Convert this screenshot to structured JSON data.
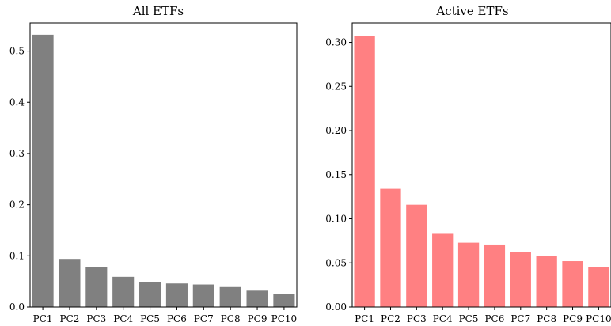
{
  "chart_data": [
    {
      "type": "bar",
      "title": "All ETFs",
      "xlabel": "",
      "ylabel": "",
      "categories": [
        "PC1",
        "PC2",
        "PC3",
        "PC4",
        "PC5",
        "PC6",
        "PC7",
        "PC8",
        "PC9",
        "PC10"
      ],
      "values": [
        0.532,
        0.094,
        0.078,
        0.059,
        0.049,
        0.046,
        0.044,
        0.039,
        0.032,
        0.026
      ],
      "ylim": [
        0,
        0.555
      ],
      "yticks": [
        0.0,
        0.1,
        0.2,
        0.3,
        0.4,
        0.5
      ],
      "ytick_labels": [
        "0.0",
        "0.1",
        "0.2",
        "0.3",
        "0.4",
        "0.5"
      ],
      "color": "#808080",
      "grid": false
    },
    {
      "type": "bar",
      "title": "Active ETFs",
      "xlabel": "",
      "ylabel": "",
      "categories": [
        "PC1",
        "PC2",
        "PC3",
        "PC4",
        "PC5",
        "PC6",
        "PC7",
        "PC8",
        "PC9",
        "PC10"
      ],
      "values": [
        0.307,
        0.134,
        0.116,
        0.083,
        0.073,
        0.07,
        0.062,
        0.058,
        0.052,
        0.045
      ],
      "ylim": [
        0,
        0.322
      ],
      "yticks": [
        0.0,
        0.05,
        0.1,
        0.15,
        0.2,
        0.25,
        0.3
      ],
      "ytick_labels": [
        "0.00",
        "0.05",
        "0.10",
        "0.15",
        "0.20",
        "0.25",
        "0.30"
      ],
      "color": "#ff8082",
      "grid": false
    }
  ]
}
